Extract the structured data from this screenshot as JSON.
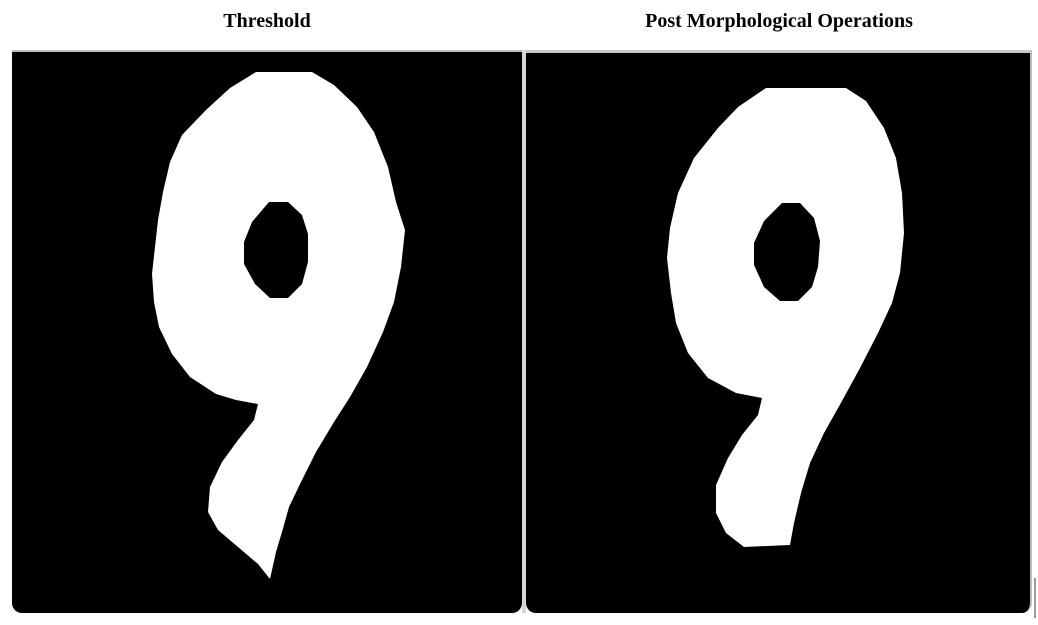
{
  "figure": {
    "left_panel": {
      "title": "Threshold",
      "glyph": "9",
      "background_color": "#000000",
      "foreground_color": "#ffffff"
    },
    "right_panel": {
      "title": "Post Morphological Operations",
      "glyph": "9",
      "background_color": "#000000",
      "foreground_color": "#ffffff"
    }
  }
}
